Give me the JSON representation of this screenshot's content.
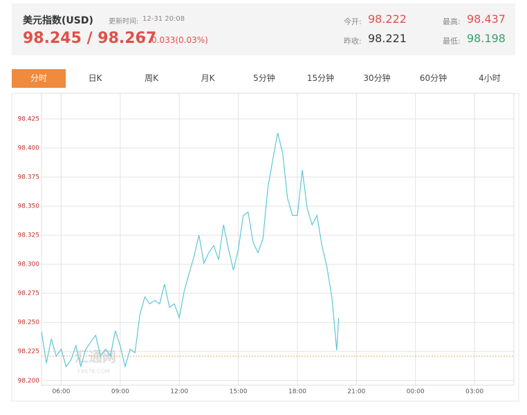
{
  "header": {
    "title": "美元指数(USD)",
    "update_label": "更新时间:",
    "update_time": "12-31 20:08",
    "bid": "98.245",
    "ask": "98.267",
    "change": "0.033(0.03%)",
    "stats": [
      {
        "label": "今开:",
        "value": "98.222"
      },
      {
        "label": "昨收:",
        "value": "98.221"
      },
      {
        "label": "最高:",
        "value": "98.437"
      },
      {
        "label": "最低:",
        "value": "98.198"
      }
    ]
  },
  "tabs": [
    "分时",
    "日K",
    "周K",
    "月K",
    "5分钟",
    "15分钟",
    "30分钟",
    "60分钟",
    "4小时"
  ],
  "active_tab": 0,
  "chart_data": {
    "type": "line",
    "color": "#5cc6d6",
    "grid": true,
    "watermark": [
      "汇通网",
      "FX678.COM"
    ],
    "reference_line": {
      "value": 98.221,
      "color": "#f0a050"
    },
    "xlim": [
      5,
      29
    ],
    "xticks": [
      {
        "value": 6,
        "label": "06:00"
      },
      {
        "value": 9,
        "label": "09:00"
      },
      {
        "value": 12,
        "label": "12:00"
      },
      {
        "value": 15,
        "label": "15:00"
      },
      {
        "value": 18,
        "label": "18:00"
      },
      {
        "value": 21,
        "label": "21:00"
      },
      {
        "value": 24,
        "label": "00:00"
      },
      {
        "value": 27,
        "label": "03:00"
      }
    ],
    "ylim": [
      98.196,
      98.447
    ],
    "yticks": [
      {
        "value": 98.2,
        "label": "98.200"
      },
      98.225,
      {
        "value": 98.25,
        "label": "98.250"
      },
      98.275,
      {
        "value": 98.3,
        "label": "98.300"
      },
      98.325,
      {
        "value": 98.35,
        "label": "98.350"
      },
      98.375,
      {
        "value": 98.4,
        "label": "98.400"
      },
      98.425
    ],
    "x": [
      5,
      5.25,
      5.5,
      5.75,
      6,
      6.25,
      6.5,
      6.75,
      7,
      7.25,
      7.5,
      7.75,
      8,
      8.25,
      8.5,
      8.75,
      9,
      9.25,
      9.5,
      9.75,
      10,
      10.25,
      10.5,
      10.75,
      11,
      11.25,
      11.5,
      11.75,
      12,
      12.25,
      12.5,
      12.75,
      13,
      13.25,
      13.5,
      13.75,
      14,
      14.25,
      14.5,
      14.75,
      15,
      15.25,
      15.5,
      15.75,
      16,
      16.25,
      16.5,
      16.75,
      17,
      17.25,
      17.5,
      17.75,
      18,
      18.25,
      18.5,
      18.75,
      19,
      19.25,
      19.5,
      19.75,
      20,
      20.1
    ],
    "values": [
      98.242,
      98.215,
      98.236,
      98.221,
      98.227,
      98.212,
      98.218,
      98.23,
      98.212,
      98.227,
      98.233,
      98.239,
      98.221,
      98.227,
      98.221,
      98.243,
      98.23,
      98.212,
      98.227,
      98.224,
      98.257,
      98.272,
      98.266,
      98.269,
      98.266,
      98.283,
      98.263,
      98.266,
      98.254,
      98.277,
      98.292,
      98.307,
      98.325,
      98.301,
      98.31,
      98.316,
      98.304,
      98.334,
      98.313,
      98.295,
      98.313,
      98.342,
      98.345,
      98.319,
      98.31,
      98.322,
      98.366,
      98.39,
      98.413,
      98.396,
      98.357,
      98.342,
      98.342,
      98.381,
      98.348,
      98.334,
      98.342,
      98.316,
      98.298,
      98.272,
      98.226,
      98.254
    ]
  }
}
